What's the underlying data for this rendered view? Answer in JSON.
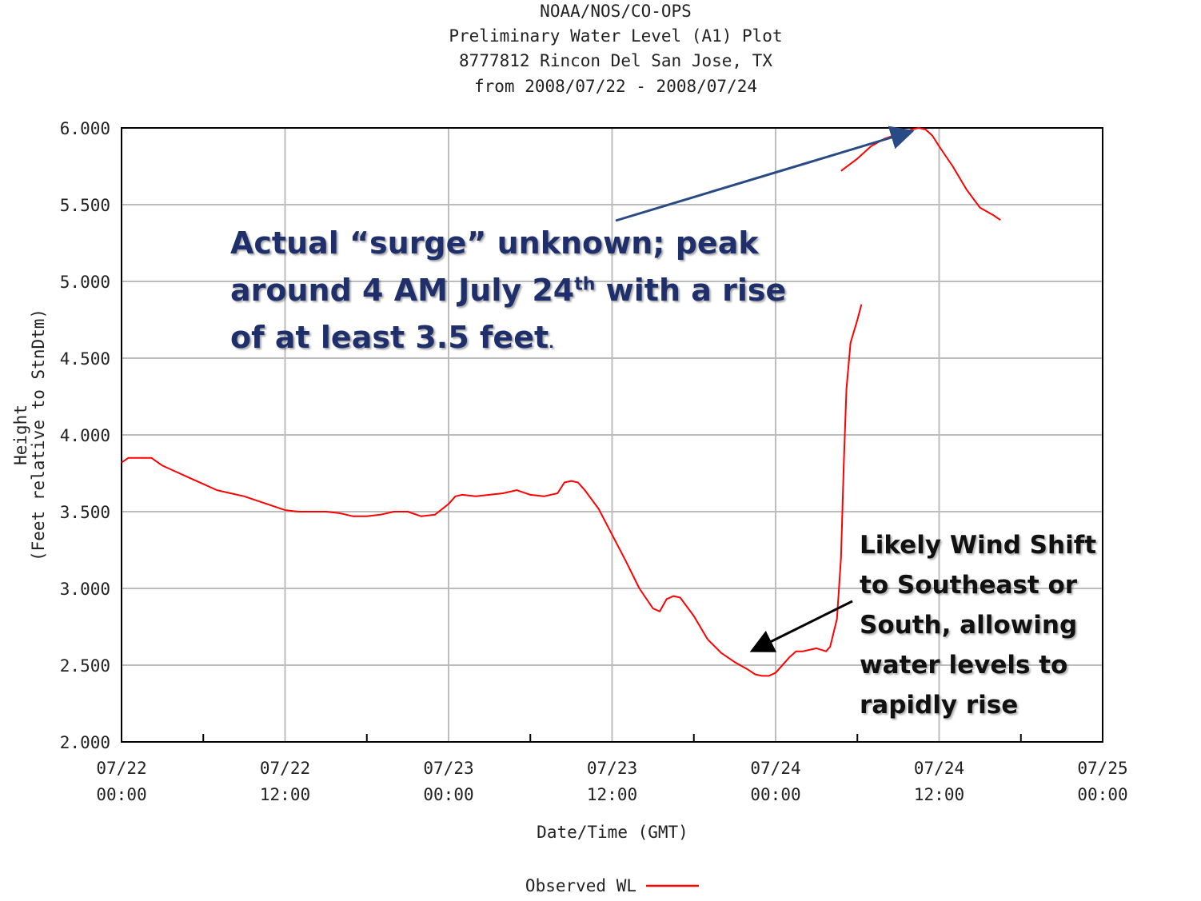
{
  "header": {
    "line1": "NOAA/NOS/CO-OPS",
    "line2": "Preliminary  Water Level (A1) Plot",
    "line3": "8777812 Rincon Del San Jose, TX",
    "line4": "from 2008/07/22 - 2008/07/24"
  },
  "annotations": {
    "surge": {
      "line1": "Actual “surge” unknown; peak",
      "line2_pre": "around 4 AM July 24",
      "line2_sup": "th",
      "line2_post": " with a rise",
      "line3": "of at least 3.5 feet",
      "line3_dot": "."
    },
    "wind": {
      "line1": "Likely Wind Shift",
      "line2": "to Southeast or",
      "line3": "South, allowing",
      "line4": "water levels to",
      "line5": "rapidly rise"
    }
  },
  "colors": {
    "series": "#ff0000",
    "grid": "#bdbdbd",
    "surge_text": "#1f2f6b",
    "surge_arrow": "#2a4a86",
    "wind_arrow": "#000000"
  },
  "chart_data": {
    "type": "line",
    "xlabel": "Date/Time (GMT)",
    "ylabel_line1": "Height",
    "ylabel_line2": "(Feet relative to StnDtm)",
    "x_unit": "hours from 2008/07/22 00:00 GMT",
    "xlim": [
      0,
      72
    ],
    "ylim": [
      2.0,
      6.0
    ],
    "y_ticks": [
      "2.000",
      "2.500",
      "3.000",
      "3.500",
      "4.000",
      "4.500",
      "5.000",
      "5.500",
      "6.000"
    ],
    "x_ticks": [
      {
        "date": "07/22",
        "time": "00:00"
      },
      {
        "date": "07/22",
        "time": "12:00"
      },
      {
        "date": "07/23",
        "time": "00:00"
      },
      {
        "date": "07/23",
        "time": "12:00"
      },
      {
        "date": "07/24",
        "time": "00:00"
      },
      {
        "date": "07/24",
        "time": "12:00"
      },
      {
        "date": "07/25",
        "time": "00:00"
      }
    ],
    "legend": {
      "label": "Observed WL",
      "position": "bottom-center"
    },
    "grid": true,
    "series": [
      {
        "name": "Observed WL",
        "segments": [
          [
            [
              0,
              3.82
            ],
            [
              0.5,
              3.85
            ],
            [
              1,
              3.85
            ],
            [
              2,
              3.85
            ],
            [
              2.2,
              3.85
            ],
            [
              3,
              3.8
            ],
            [
              4,
              3.76
            ],
            [
              5,
              3.72
            ],
            [
              6,
              3.68
            ],
            [
              7,
              3.64
            ],
            [
              8,
              3.62
            ],
            [
              9,
              3.6
            ],
            [
              10,
              3.57
            ],
            [
              11,
              3.54
            ],
            [
              12,
              3.51
            ],
            [
              13,
              3.5
            ],
            [
              14,
              3.5
            ],
            [
              15,
              3.5
            ],
            [
              16,
              3.49
            ],
            [
              17,
              3.47
            ],
            [
              18,
              3.47
            ],
            [
              19,
              3.48
            ],
            [
              20,
              3.5
            ],
            [
              21,
              3.5
            ],
            [
              22,
              3.47
            ],
            [
              23,
              3.48
            ],
            [
              24,
              3.55
            ],
            [
              24.5,
              3.6
            ],
            [
              25,
              3.61
            ],
            [
              26,
              3.6
            ],
            [
              27,
              3.61
            ],
            [
              28,
              3.62
            ],
            [
              29,
              3.64
            ],
            [
              30,
              3.61
            ],
            [
              31,
              3.6
            ],
            [
              32,
              3.62
            ],
            [
              32.5,
              3.69
            ],
            [
              33,
              3.7
            ],
            [
              33.5,
              3.69
            ],
            [
              34,
              3.64
            ],
            [
              35,
              3.52
            ],
            [
              36,
              3.35
            ],
            [
              37,
              3.18
            ],
            [
              38,
              3.0
            ],
            [
              39,
              2.87
            ],
            [
              39.5,
              2.85
            ],
            [
              40,
              2.93
            ],
            [
              40.5,
              2.95
            ],
            [
              41,
              2.94
            ],
            [
              42,
              2.82
            ],
            [
              43,
              2.67
            ],
            [
              44,
              2.58
            ],
            [
              45,
              2.52
            ],
            [
              46,
              2.47
            ],
            [
              46.5,
              2.44
            ],
            [
              47,
              2.43
            ],
            [
              47.5,
              2.43
            ],
            [
              48,
              2.45
            ],
            [
              49,
              2.55
            ],
            [
              49.5,
              2.59
            ],
            [
              50,
              2.59
            ],
            [
              51,
              2.61
            ],
            [
              51.7,
              2.59
            ],
            [
              52,
              2.62
            ],
            [
              52.5,
              2.8
            ],
            [
              52.8,
              3.2
            ],
            [
              53.0,
              3.8
            ],
            [
              53.2,
              4.3
            ],
            [
              53.5,
              4.6
            ],
            [
              54,
              4.75
            ],
            [
              54.3,
              4.85
            ]
          ],
          [
            [
              52.8,
              5.72
            ],
            [
              54,
              5.8
            ],
            [
              55,
              5.88
            ],
            [
              56,
              5.93
            ],
            [
              57,
              5.96
            ],
            [
              58,
              5.99
            ],
            [
              58.5,
              6.0
            ],
            [
              59,
              5.99
            ],
            [
              59.5,
              5.95
            ],
            [
              60,
              5.88
            ],
            [
              61,
              5.75
            ],
            [
              62,
              5.6
            ],
            [
              63,
              5.48
            ],
            [
              64,
              5.43
            ],
            [
              64.5,
              5.4
            ]
          ]
        ]
      }
    ]
  }
}
